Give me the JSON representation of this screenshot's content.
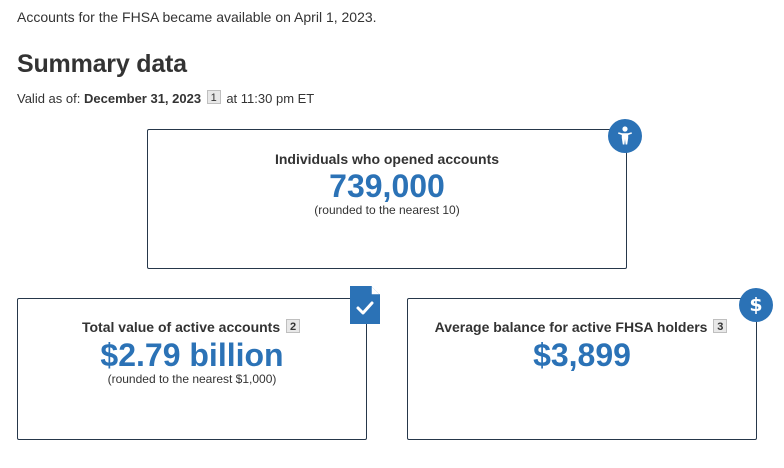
{
  "intro": "Accounts for the FHSA became available on April 1, 2023.",
  "heading": "Summary data",
  "valid_as_of": {
    "prefix": "Valid as of:",
    "date": "December 31, 2023",
    "footnote": "1",
    "suffix": "at 11:30 pm ET"
  },
  "cards": {
    "individuals": {
      "label": "Individuals who opened accounts",
      "value": "739,000",
      "note": "(rounded to the nearest 10)",
      "icon": "person-icon"
    },
    "total": {
      "label": "Total value of active accounts",
      "footnote": "2",
      "value": "$2.79 billion",
      "note": "(rounded to the nearest $1,000)",
      "icon": "document-check-icon"
    },
    "average": {
      "label": "Average balance for active FHSA holders",
      "footnote": "3",
      "value": "$3,899",
      "icon": "dollar-icon",
      "icon_glyph": "$"
    }
  },
  "colors": {
    "accent": "#2b72b6",
    "border": "#26374a",
    "text": "#333333"
  }
}
